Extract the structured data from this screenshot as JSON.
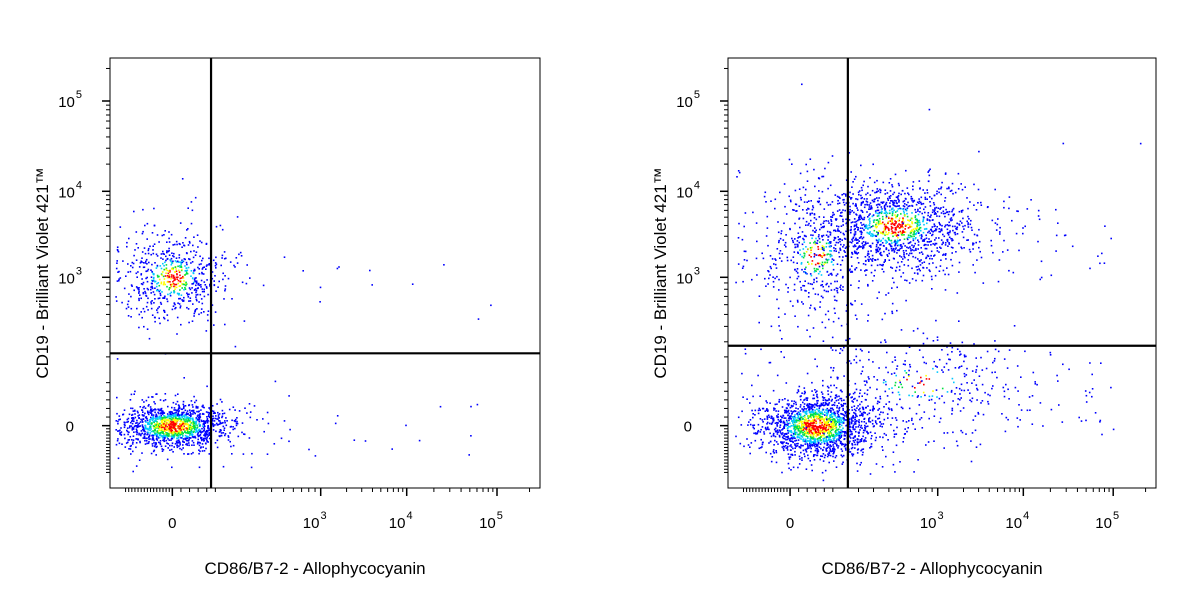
{
  "chart_data": [
    {
      "type": "scatter",
      "title": "",
      "xlabel": "CD86/B7-2 - Allophycocyanin",
      "ylabel": "CD19 - Brilliant Violet 421™",
      "x_scale": "biexponential",
      "y_scale": "biexponential",
      "x_ticks": [
        {
          "value": 0,
          "base": "0",
          "exp": ""
        },
        {
          "value": 1000,
          "base": "10",
          "exp": "3"
        },
        {
          "value": 10000,
          "base": "10",
          "exp": "4"
        },
        {
          "value": 100000,
          "base": "10",
          "exp": "5"
        }
      ],
      "y_ticks": [
        {
          "value": 0,
          "base": "0",
          "exp": ""
        },
        {
          "value": 1000,
          "base": "10",
          "exp": "3"
        },
        {
          "value": 10000,
          "base": "10",
          "exp": "4"
        },
        {
          "value": 100000,
          "base": "10",
          "exp": "5"
        }
      ],
      "gate": {
        "x": 90,
        "y": 220
      },
      "populations": [
        {
          "x": 0,
          "y": 0,
          "count": 1400,
          "density": "high"
        },
        {
          "x": 0,
          "y": 1000,
          "count": 650,
          "density": "medium"
        }
      ],
      "color_scale": [
        "#0000ff",
        "#00c8ff",
        "#00e040",
        "#ffff00",
        "#ff0000"
      ],
      "grid": false
    },
    {
      "type": "scatter",
      "title": "",
      "xlabel": "CD86/B7-2 - Allophycocyanin",
      "ylabel": "CD19 - Brilliant Violet 421™",
      "x_scale": "biexponential",
      "y_scale": "biexponential",
      "x_ticks": [
        {
          "value": 0,
          "base": "0",
          "exp": ""
        },
        {
          "value": 1000,
          "base": "10",
          "exp": "3"
        },
        {
          "value": 10000,
          "base": "10",
          "exp": "4"
        },
        {
          "value": 100000,
          "base": "10",
          "exp": "5"
        }
      ],
      "y_ticks": [
        {
          "value": 0,
          "base": "0",
          "exp": ""
        },
        {
          "value": 1000,
          "base": "10",
          "exp": "3"
        },
        {
          "value": 10000,
          "base": "10",
          "exp": "4"
        },
        {
          "value": 100000,
          "base": "10",
          "exp": "5"
        }
      ],
      "gate": {
        "x": 150,
        "y": 270
      },
      "populations": [
        {
          "x": 60,
          "y": 0,
          "count": 1700,
          "density": "high"
        },
        {
          "x": 450,
          "y": 4000,
          "count": 1300,
          "density": "medium"
        },
        {
          "x": 60,
          "y": 1800,
          "count": 500,
          "density": "low"
        },
        {
          "x": 700,
          "y": 100,
          "count": 350,
          "density": "low"
        }
      ],
      "color_scale": [
        "#0000ff",
        "#00c8ff",
        "#00e040",
        "#ffff00",
        "#ff0000"
      ],
      "grid": false
    }
  ]
}
